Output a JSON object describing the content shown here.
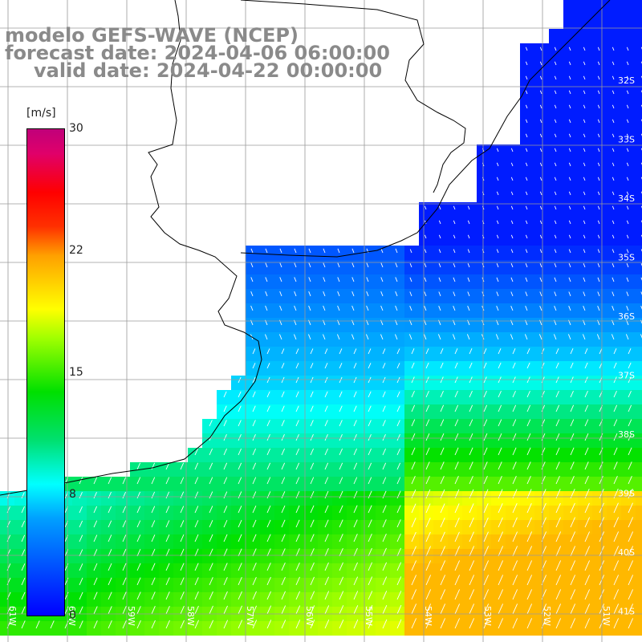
{
  "header": {
    "line1": "modelo GEFS-WAVE (NCEP)",
    "line2": "forecast date: 2024-04-06 06:00:00",
    "line3": "valid date: 2024-04-22 00:00:00"
  },
  "colorbar": {
    "unit": "[m/s]",
    "ticks": [
      "30",
      "22",
      "15",
      "8",
      "0"
    ],
    "range": [
      0,
      30
    ]
  },
  "map": {
    "lat_labels": [
      "32S",
      "33S",
      "34S",
      "35S",
      "36S",
      "37S",
      "38S",
      "39S",
      "40S",
      "41S"
    ],
    "lon_labels": [
      "61W",
      "60W",
      "59W",
      "58W",
      "57W",
      "56W",
      "55W",
      "54W",
      "53W",
      "52W",
      "51W"
    ],
    "colors": {
      "land": "#ffffff",
      "coast": "#000000",
      "grid": "#9a9a9a",
      "arrows": "#ffffff"
    }
  }
}
